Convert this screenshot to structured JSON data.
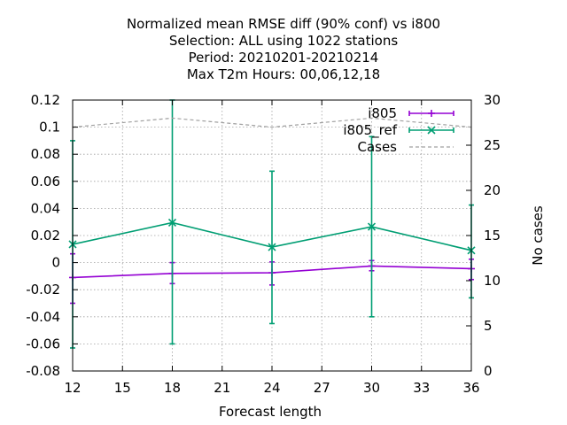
{
  "chart_data": {
    "type": "line",
    "title_lines": [
      "Normalized mean RMSE diff (90% conf) vs i800",
      "Selection: ALL using  1022 stations",
      "Period: 20210201-20210214",
      "Max T2m   Hours:  00,06,12,18"
    ],
    "xlabel": "Forecast length",
    "ylabel": "",
    "y2label": "No cases",
    "xlim": [
      12,
      36
    ],
    "ylim": [
      -0.08,
      0.12
    ],
    "y2lim": [
      0,
      30
    ],
    "xticks": [
      "12",
      "15",
      "18",
      "21",
      "24",
      "27",
      "30",
      "33",
      "36"
    ],
    "yticks": [
      "-0.08",
      "-0.06",
      "-0.04",
      "-0.02",
      "0",
      "0.02",
      "0.04",
      "0.06",
      "0.08",
      "0.1",
      "0.12"
    ],
    "y2ticks": [
      "0",
      "5",
      "10",
      "15",
      "20",
      "25",
      "30"
    ],
    "grid": true,
    "legend_position": "top-right",
    "series": [
      {
        "name": "i805",
        "color": "#9400d3",
        "axis": "y",
        "marker": "plus",
        "x": [
          12,
          18,
          24,
          30,
          36
        ],
        "y": [
          -0.011,
          -0.008,
          -0.0075,
          -0.0025,
          -0.0045
        ],
        "err_low": [
          -0.03,
          -0.0155,
          -0.0165,
          -0.006,
          -0.0125
        ],
        "err_high": [
          0.0065,
          0.0,
          0.0005,
          0.0015,
          0.0025
        ]
      },
      {
        "name": "i805_ref",
        "color": "#009e73",
        "axis": "y",
        "marker": "cross",
        "x": [
          12,
          18,
          24,
          30,
          36
        ],
        "y": [
          0.0135,
          0.0295,
          0.0115,
          0.0265,
          0.009
        ],
        "err_low": [
          -0.063,
          -0.06,
          -0.045,
          -0.04,
          -0.026
        ],
        "err_high": [
          0.09,
          0.12,
          0.0675,
          0.093,
          0.0425
        ]
      },
      {
        "name": "Cases",
        "color": "#a0a0a0",
        "axis": "y2",
        "style": "dashed",
        "x": [
          12,
          18,
          24,
          30,
          36
        ],
        "y": [
          27,
          28,
          27,
          28,
          27
        ]
      }
    ]
  }
}
